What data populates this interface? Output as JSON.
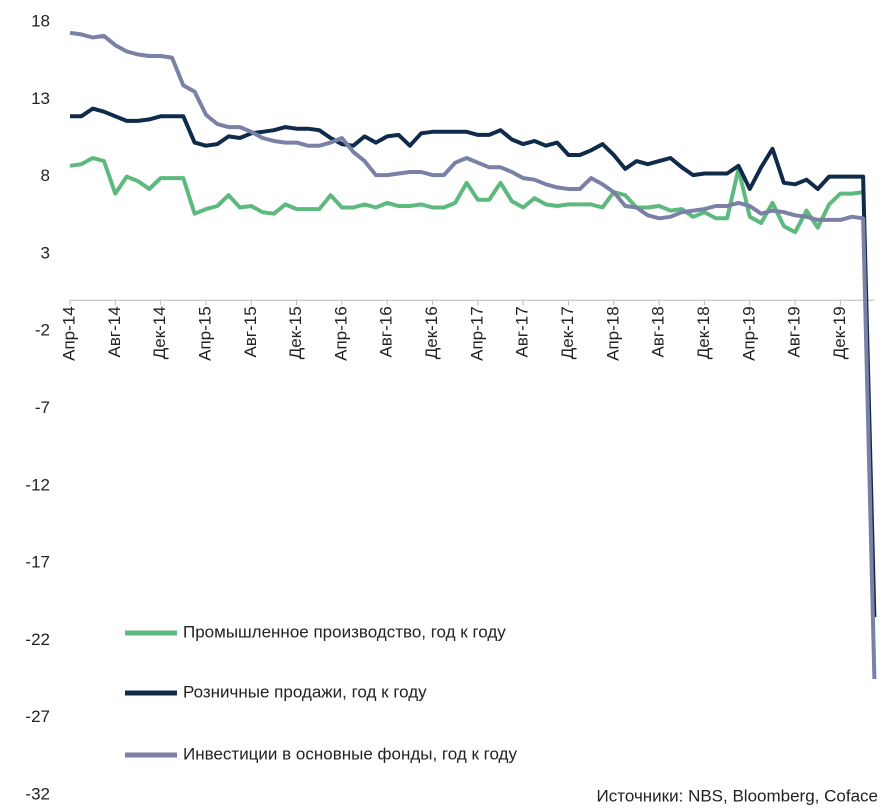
{
  "chart_data": {
    "type": "line",
    "source": "Источники: NBS, Bloomberg, Coface",
    "categories": [
      "Апр-14",
      null,
      null,
      null,
      "Авг-14",
      null,
      null,
      null,
      "Дек-14",
      null,
      null,
      null,
      "Апр-15",
      null,
      null,
      null,
      "Авг-15",
      null,
      null,
      null,
      "Дек-15",
      null,
      null,
      null,
      "Апр-16",
      null,
      null,
      null,
      "Авг-16",
      null,
      null,
      null,
      "Дек-16",
      null,
      null,
      null,
      "Апр-17",
      null,
      null,
      null,
      "Авг-17",
      null,
      null,
      null,
      "Дек-17",
      null,
      null,
      null,
      "Апр-18",
      null,
      null,
      null,
      "Авг-18",
      null,
      null,
      null,
      "Дек-18",
      null,
      null,
      null,
      "Апр-19",
      null,
      null,
      null,
      "Авг-19",
      null,
      null,
      null,
      "Дек-19",
      null,
      null,
      null
    ],
    "series": [
      {
        "name": "Промышленное производство, год к году",
        "color": "#5db97d",
        "values": [
          8.7,
          8.8,
          9.2,
          9.0,
          6.9,
          8.0,
          7.7,
          7.2,
          7.9,
          7.9,
          7.9,
          5.6,
          5.9,
          6.1,
          6.8,
          6.0,
          6.1,
          5.7,
          5.6,
          6.2,
          5.9,
          5.9,
          5.9,
          6.8,
          6.0,
          6.0,
          6.2,
          6.0,
          6.3,
          6.1,
          6.1,
          6.2,
          6.0,
          6.0,
          6.3,
          7.6,
          6.5,
          6.5,
          7.6,
          6.4,
          6.0,
          6.6,
          6.2,
          6.1,
          6.2,
          6.2,
          6.2,
          6.0,
          7.0,
          6.8,
          6.0,
          6.0,
          6.1,
          5.8,
          5.9,
          5.4,
          5.7,
          5.3,
          5.3,
          8.5,
          5.4,
          5.0,
          6.3,
          4.8,
          4.4,
          5.8,
          4.7,
          6.2,
          6.9,
          6.9,
          7.0,
          null
        ]
      },
      {
        "name": "Розничные продажи, год к году",
        "color": "#0f2a4a",
        "values": [
          11.9,
          11.9,
          12.4,
          12.2,
          11.9,
          11.6,
          11.6,
          11.7,
          11.9,
          11.9,
          11.9,
          10.2,
          10.0,
          10.1,
          10.6,
          10.5,
          10.8,
          10.9,
          11.0,
          11.2,
          11.1,
          11.1,
          11.0,
          10.5,
          10.1,
          10.0,
          10.6,
          10.2,
          10.6,
          10.7,
          10.0,
          10.8,
          10.9,
          10.9,
          10.9,
          10.9,
          10.7,
          10.7,
          11.0,
          10.4,
          10.1,
          10.3,
          10.0,
          10.2,
          9.4,
          9.4,
          9.7,
          10.1,
          9.4,
          8.5,
          9.0,
          8.8,
          9.0,
          9.2,
          8.6,
          8.1,
          8.2,
          8.2,
          8.2,
          8.7,
          7.2,
          8.6,
          9.8,
          7.6,
          7.5,
          7.8,
          7.2,
          8.0,
          8.0,
          8.0,
          8.0,
          -20.5
        ]
      },
      {
        "name": "Инвестиции в основные фонды, год к году",
        "color": "#7a80a6",
        "values": [
          17.3,
          17.2,
          17.0,
          17.1,
          16.5,
          16.1,
          15.9,
          15.8,
          15.8,
          15.7,
          13.9,
          13.5,
          12.0,
          11.4,
          11.2,
          11.2,
          10.9,
          10.5,
          10.3,
          10.2,
          10.2,
          10.0,
          10.0,
          10.2,
          10.5,
          9.6,
          9.0,
          8.1,
          8.1,
          8.2,
          8.3,
          8.3,
          8.1,
          8.1,
          8.9,
          9.2,
          8.9,
          8.6,
          8.6,
          8.3,
          7.9,
          7.8,
          7.5,
          7.3,
          7.2,
          7.2,
          7.9,
          7.5,
          7.0,
          6.1,
          6.0,
          5.5,
          5.3,
          5.4,
          5.7,
          5.8,
          5.9,
          6.1,
          6.1,
          6.3,
          6.1,
          5.6,
          5.8,
          5.7,
          5.5,
          5.4,
          5.2,
          5.2,
          5.2,
          5.4,
          5.3,
          -24.5
        ]
      }
    ],
    "ylim": [
      -32,
      18
    ],
    "yticks": [
      18,
      13,
      8,
      3,
      -2,
      -7,
      -12,
      -17,
      -22,
      -27,
      -32
    ],
    "legend": "lower left"
  }
}
